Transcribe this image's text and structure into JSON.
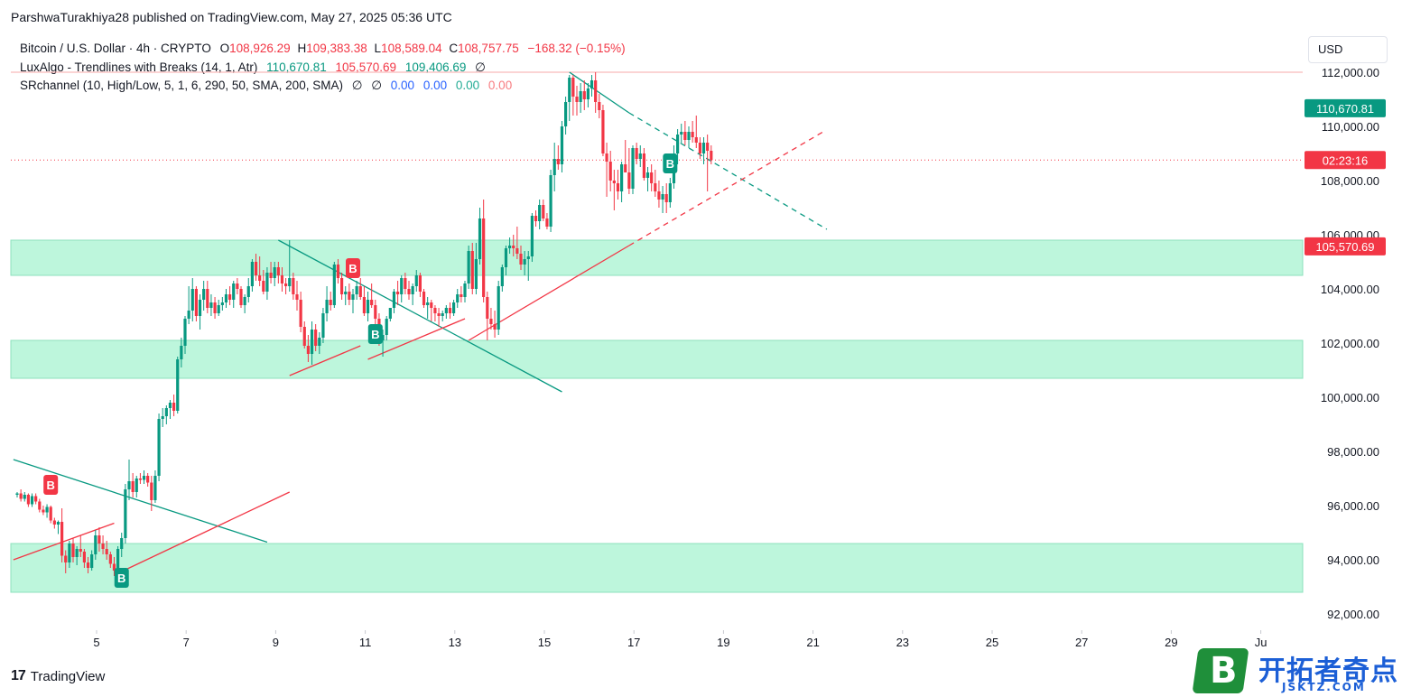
{
  "header": {
    "published": "ParshwaTurakhiya28 published on TradingView.com, May 27, 2025 05:36 UTC"
  },
  "legend": {
    "symbol": "Bitcoin / U.S. Dollar · 4h · CRYPTO",
    "o_label": "O",
    "o": "108,926.29",
    "h_label": "H",
    "h": "109,383.38",
    "l_label": "L",
    "l": "108,589.04",
    "c_label": "C",
    "c": "108,757.75",
    "change": "−168.32 (−0.15%)",
    "ind1_name": "LuxAlgo - Trendlines with Breaks (14, 1, Atr)",
    "ind1_v1": "110,670.81",
    "ind1_v2": "105,570.69",
    "ind1_v3": "109,406.69",
    "ind1_v4": "∅",
    "ind2_name": "SRchannel (10, High/Low, 5, 1, 6, 290, 50, SMA, 200, SMA)",
    "ind2_v1": "∅",
    "ind2_v2": "∅",
    "ind2_v3": "0.00",
    "ind2_v4": "0.00",
    "ind2_v5": "0.00",
    "ind2_v6": "0.00"
  },
  "currency": "USD",
  "footer": {
    "brand": "TradingView",
    "brand_mark": "17"
  },
  "watermark": {
    "badge": "B",
    "title": "开拓者奇点",
    "sub": "JSKTZ.COM"
  },
  "colors": {
    "up": "#089981",
    "down": "#f23645",
    "zone": "#b2f5d6",
    "trend_teal": "#089981",
    "trend_red": "#f23645"
  },
  "chart_data": {
    "type": "candlestick",
    "timeframe": "4h",
    "x_ticks": [
      "5",
      "7",
      "9",
      "11",
      "13",
      "15",
      "17",
      "19",
      "21",
      "23",
      "25",
      "27",
      "29",
      "Ju"
    ],
    "y_ticks": [
      92000,
      94000,
      96000,
      98000,
      100000,
      102000,
      104000,
      106000,
      108000,
      110000,
      112000
    ],
    "ylim": [
      91700,
      113400
    ],
    "last_price": 108757.75,
    "price_labels": [
      {
        "value": 110670.81,
        "text": "110,670.81",
        "color": "#089981"
      },
      {
        "value": 108757.75,
        "text": "02:23:16",
        "color": "#f23645"
      },
      {
        "value": 105570.69,
        "text": "105,570.69",
        "color": "#f23645"
      }
    ],
    "sr_zones": [
      {
        "low": 104500,
        "high": 105800
      },
      {
        "low": 100700,
        "high": 102100
      },
      {
        "low": 92800,
        "high": 94600
      }
    ],
    "horizontal_line": 112000,
    "candles": [
      [
        96400,
        96500,
        96300,
        96450
      ],
      [
        96450,
        96600,
        96150,
        96250
      ],
      [
        96250,
        96500,
        96150,
        96400
      ],
      [
        96400,
        96450,
        95950,
        96050
      ],
      [
        96050,
        96450,
        95950,
        96350
      ],
      [
        96350,
        96450,
        96050,
        96150
      ],
      [
        96150,
        96250,
        95750,
        95850
      ],
      [
        95850,
        96000,
        95650,
        95750
      ],
      [
        95750,
        96050,
        95550,
        95950
      ],
      [
        95950,
        96000,
        95350,
        95450
      ],
      [
        95450,
        95550,
        95150,
        95300
      ],
      [
        95300,
        95450,
        94950,
        95400
      ],
      [
        95400,
        95900,
        93900,
        94150
      ],
      [
        94150,
        94350,
        93500,
        93900
      ],
      [
        93900,
        94700,
        93700,
        94600
      ],
      [
        94600,
        94800,
        93900,
        94100
      ],
      [
        94100,
        94500,
        93800,
        94400
      ],
      [
        94400,
        94900,
        94100,
        94300
      ],
      [
        94300,
        94400,
        93700,
        93900
      ],
      [
        93900,
        94100,
        93500,
        93700
      ],
      [
        93700,
        94350,
        93600,
        94200
      ],
      [
        94200,
        95100,
        94000,
        94900
      ],
      [
        94900,
        95200,
        94300,
        94600
      ],
      [
        94600,
        94900,
        94200,
        94400
      ],
      [
        94400,
        94700,
        94000,
        94200
      ],
      [
        94200,
        94300,
        93700,
        93850
      ],
      [
        93850,
        94100,
        93400,
        93600
      ],
      [
        93600,
        94500,
        93500,
        94400
      ],
      [
        94400,
        95000,
        94100,
        94800
      ],
      [
        94800,
        96800,
        94600,
        96600
      ],
      [
        96600,
        97700,
        96200,
        96900
      ],
      [
        96900,
        97200,
        96300,
        96500
      ],
      [
        96500,
        97100,
        96300,
        97000
      ],
      [
        97000,
        97200,
        96800,
        96950
      ],
      [
        96950,
        97300,
        96800,
        97100
      ],
      [
        97100,
        97200,
        96700,
        96850
      ],
      [
        96850,
        97100,
        95800,
        96200
      ],
      [
        96200,
        97300,
        96100,
        97100
      ],
      [
        97100,
        99400,
        96900,
        99200
      ],
      [
        99200,
        99600,
        98900,
        99300
      ],
      [
        99300,
        99700,
        99000,
        99600
      ],
      [
        99600,
        99900,
        99200,
        99800
      ],
      [
        99800,
        100100,
        99300,
        99500
      ],
      [
        99500,
        101500,
        99400,
        101400
      ],
      [
        101400,
        102200,
        101100,
        101900
      ],
      [
        101900,
        103000,
        101600,
        102900
      ],
      [
        102900,
        104100,
        102700,
        103200
      ],
      [
        103200,
        104400,
        102800,
        104000
      ],
      [
        104000,
        104100,
        102800,
        103000
      ],
      [
        103000,
        103800,
        102500,
        103600
      ],
      [
        103600,
        104300,
        103200,
        104000
      ],
      [
        104000,
        104300,
        103100,
        103300
      ],
      [
        103300,
        103800,
        103000,
        103500
      ],
      [
        103500,
        103700,
        102900,
        103100
      ],
      [
        103100,
        103600,
        103000,
        103400
      ],
      [
        103400,
        103700,
        103200,
        103500
      ],
      [
        103500,
        104000,
        103300,
        103800
      ],
      [
        103800,
        104100,
        103400,
        103600
      ],
      [
        103600,
        104300,
        103300,
        104200
      ],
      [
        104200,
        104400,
        103800,
        104000
      ],
      [
        104000,
        104100,
        103300,
        103400
      ],
      [
        103400,
        103800,
        103100,
        103700
      ],
      [
        103700,
        104400,
        103500,
        104100
      ],
      [
        104100,
        105100,
        103900,
        105000
      ],
      [
        105000,
        105300,
        104300,
        104500
      ],
      [
        104500,
        105200,
        104100,
        104300
      ],
      [
        104300,
        104700,
        103800,
        103900
      ],
      [
        103900,
        104800,
        103600,
        104600
      ],
      [
        104600,
        105000,
        104200,
        104400
      ],
      [
        104400,
        105000,
        104100,
        104800
      ],
      [
        104800,
        105000,
        104200,
        104500
      ],
      [
        104500,
        104800,
        103900,
        104200
      ],
      [
        104200,
        104400,
        103800,
        104100
      ],
      [
        104100,
        105800,
        103900,
        104400
      ],
      [
        104400,
        104600,
        103600,
        103800
      ],
      [
        103800,
        104300,
        103200,
        103600
      ],
      [
        103600,
        103900,
        102400,
        102600
      ],
      [
        102600,
        102800,
        101800,
        101900
      ],
      [
        101900,
        102300,
        101300,
        101600
      ],
      [
        101600,
        102800,
        101200,
        102500
      ],
      [
        102500,
        102700,
        101700,
        101900
      ],
      [
        101900,
        102400,
        101600,
        102200
      ],
      [
        102200,
        103300,
        102000,
        103100
      ],
      [
        103100,
        104100,
        102800,
        103600
      ],
      [
        103600,
        103900,
        103200,
        103400
      ],
      [
        103400,
        105000,
        103300,
        104900
      ],
      [
        104900,
        105100,
        104200,
        104400
      ],
      [
        104400,
        104600,
        103600,
        103800
      ],
      [
        103800,
        104100,
        103400,
        103900
      ],
      [
        103900,
        104200,
        103400,
        103600
      ],
      [
        103600,
        104000,
        103100,
        103800
      ],
      [
        103800,
        104300,
        103600,
        104100
      ],
      [
        104100,
        104400,
        103600,
        103700
      ],
      [
        103700,
        104100,
        103000,
        103100
      ],
      [
        103100,
        103900,
        102800,
        103600
      ],
      [
        103600,
        104200,
        103300,
        103400
      ],
      [
        103400,
        103600,
        102700,
        102900
      ],
      [
        102900,
        103100,
        101900,
        102100
      ],
      [
        102100,
        102500,
        101500,
        102300
      ],
      [
        102300,
        103000,
        102100,
        102900
      ],
      [
        102900,
        103300,
        102800,
        103300
      ],
      [
        103300,
        104000,
        103100,
        103900
      ],
      [
        103900,
        104300,
        103400,
        103800
      ],
      [
        103800,
        104500,
        103500,
        104400
      ],
      [
        104400,
        104600,
        103800,
        104000
      ],
      [
        104000,
        104300,
        103600,
        103800
      ],
      [
        103800,
        104200,
        103400,
        104100
      ],
      [
        104100,
        104700,
        103900,
        104500
      ],
      [
        104500,
        104600,
        103700,
        103900
      ],
      [
        103900,
        104000,
        103300,
        103400
      ],
      [
        103400,
        103700,
        102900,
        103500
      ],
      [
        103500,
        103600,
        102800,
        103300
      ],
      [
        103300,
        103400,
        102800,
        103100
      ],
      [
        103100,
        103300,
        102600,
        103000
      ],
      [
        103000,
        103200,
        102800,
        103100
      ],
      [
        103100,
        103400,
        102900,
        103300
      ],
      [
        103300,
        103500,
        102900,
        103100
      ],
      [
        103100,
        103600,
        103000,
        103500
      ],
      [
        103500,
        104000,
        103300,
        103800
      ],
      [
        103800,
        104100,
        103500,
        103700
      ],
      [
        103700,
        104300,
        103500,
        104200
      ],
      [
        104200,
        105600,
        104000,
        105400
      ],
      [
        105400,
        105700,
        103800,
        104000
      ],
      [
        104000,
        105700,
        103800,
        105100
      ],
      [
        105100,
        107000,
        104900,
        106600
      ],
      [
        106600,
        107300,
        103500,
        103700
      ],
      [
        103700,
        103900,
        102100,
        102900
      ],
      [
        102900,
        103300,
        102500,
        102700
      ],
      [
        102700,
        103200,
        102200,
        102500
      ],
      [
        102500,
        104300,
        102300,
        104100
      ],
      [
        104100,
        104900,
        103900,
        104800
      ],
      [
        104800,
        105600,
        104500,
        105500
      ],
      [
        105500,
        105900,
        105300,
        105600
      ],
      [
        105600,
        106000,
        105200,
        105500
      ],
      [
        105500,
        106300,
        105100,
        105300
      ],
      [
        105300,
        105600,
        104700,
        104900
      ],
      [
        104900,
        105400,
        104500,
        105100
      ],
      [
        105100,
        105400,
        104300,
        105200
      ],
      [
        105200,
        106800,
        105000,
        106700
      ],
      [
        106700,
        106900,
        106300,
        106500
      ],
      [
        106500,
        107300,
        106200,
        107100
      ],
      [
        107100,
        107300,
        106500,
        106600
      ],
      [
        106600,
        106800,
        106200,
        106300
      ],
      [
        106300,
        108400,
        106100,
        108200
      ],
      [
        108200,
        109400,
        107600,
        108800
      ],
      [
        108800,
        109300,
        108400,
        108600
      ],
      [
        108600,
        110200,
        108300,
        110000
      ],
      [
        110000,
        111100,
        109700,
        110900
      ],
      [
        110900,
        111900,
        110200,
        111800
      ],
      [
        111800,
        111900,
        110400,
        111100
      ],
      [
        111100,
        111500,
        110400,
        110900
      ],
      [
        110900,
        111600,
        110500,
        111300
      ],
      [
        111300,
        111700,
        110600,
        111000
      ],
      [
        111000,
        111600,
        110700,
        111400
      ],
      [
        111400,
        111900,
        111100,
        111700
      ],
      [
        111700,
        112000,
        110500,
        110900
      ],
      [
        110900,
        111200,
        110300,
        110600
      ],
      [
        110600,
        110800,
        108900,
        109000
      ],
      [
        109000,
        109400,
        107400,
        108700
      ],
      [
        108700,
        109100,
        107600,
        108000
      ],
      [
        108000,
        108400,
        106900,
        107900
      ],
      [
        107900,
        108400,
        107300,
        107600
      ],
      [
        107600,
        108700,
        107200,
        108600
      ],
      [
        108600,
        109500,
        108300,
        108300
      ],
      [
        108300,
        109200,
        107500,
        107700
      ],
      [
        107700,
        109300,
        107500,
        109200
      ],
      [
        109200,
        109400,
        108600,
        108800
      ],
      [
        108800,
        109300,
        108500,
        109000
      ],
      [
        109000,
        109200,
        108000,
        108100
      ],
      [
        108100,
        108500,
        107600,
        108300
      ],
      [
        108300,
        108600,
        107600,
        107900
      ],
      [
        107900,
        108400,
        107400,
        107600
      ],
      [
        107600,
        108000,
        107000,
        107300
      ],
      [
        107300,
        107800,
        106800,
        107500
      ],
      [
        107500,
        107900,
        106800,
        107200
      ],
      [
        107200,
        108100,
        107000,
        107900
      ],
      [
        107900,
        109300,
        107700,
        109000
      ],
      [
        109000,
        109900,
        108600,
        109700
      ],
      [
        109700,
        110100,
        109400,
        109800
      ],
      [
        109800,
        110200,
        109300,
        109500
      ],
      [
        109500,
        110000,
        109200,
        109800
      ],
      [
        109800,
        110200,
        109400,
        109600
      ],
      [
        109600,
        110400,
        109200,
        109400
      ],
      [
        109400,
        109600,
        108800,
        109000
      ],
      [
        109000,
        109600,
        108600,
        109400
      ],
      [
        109400,
        109700,
        107600,
        109100
      ],
      [
        109100,
        109300,
        108600,
        108760
      ]
    ],
    "break_signals": [
      {
        "x_index": 9,
        "price": 96200,
        "label": "B",
        "color": "#f23645",
        "position": "above"
      },
      {
        "x_index": 28,
        "price": 93900,
        "label": "B",
        "color": "#089981",
        "position": "below"
      },
      {
        "x_index": 90,
        "price": 104200,
        "label": "B",
        "color": "#f23645",
        "position": "above"
      },
      {
        "x_index": 96,
        "price": 102900,
        "label": "B",
        "color": "#089981",
        "position": "below"
      },
      {
        "x_index": 175,
        "price": 109200,
        "label": "B",
        "color": "#089981",
        "position": "below"
      }
    ],
    "trendlines": [
      {
        "color": "#089981",
        "from": [
          -1,
          97700
        ],
        "to": [
          67,
          94650
        ],
        "dashed": false
      },
      {
        "color": "#f23645",
        "from": [
          -1,
          94000
        ],
        "to": [
          26,
          95350
        ],
        "dashed": false
      },
      {
        "color": "#f23645",
        "from": [
          27,
          93500
        ],
        "to": [
          73,
          96500
        ],
        "dashed": false
      },
      {
        "color": "#089981",
        "from": [
          70,
          105800
        ],
        "to": [
          146,
          100200
        ],
        "dashed": false
      },
      {
        "color": "#f23645",
        "from": [
          73,
          100800
        ],
        "to": [
          92,
          101900
        ],
        "dashed": false
      },
      {
        "color": "#f23645",
        "from": [
          94,
          101400
        ],
        "to": [
          120,
          102900
        ],
        "dashed": false
      },
      {
        "color": "#089981",
        "from": [
          148,
          112000
        ],
        "to": [
          164,
          110500
        ],
        "dashed": false
      },
      {
        "color": "#089981",
        "from": [
          164,
          110500
        ],
        "to": [
          217,
          106200
        ],
        "dashed": true
      },
      {
        "color": "#f23645",
        "from": [
          121,
          102100
        ],
        "to": [
          164,
          105600
        ],
        "dashed": false
      },
      {
        "color": "#f23645",
        "from": [
          164,
          105600
        ],
        "to": [
          216,
          109800
        ],
        "dashed": true
      }
    ]
  }
}
